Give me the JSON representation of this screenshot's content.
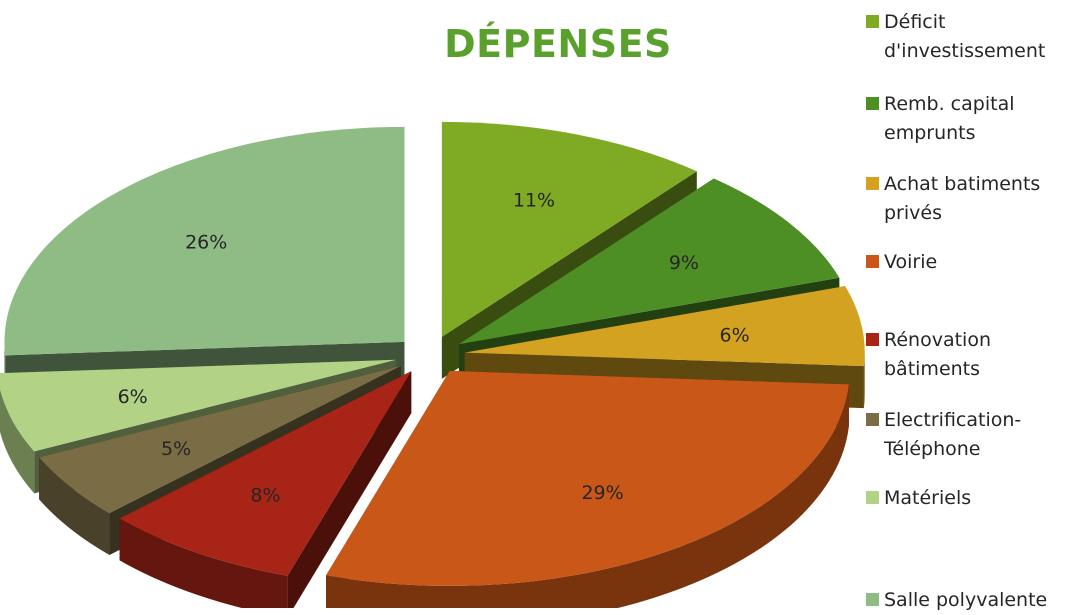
{
  "chart_data": {
    "type": "pie",
    "title": "DÉPENSES",
    "categories": [
      "Déficit\nd'investissement",
      "Remb. capital\nemprunts",
      "Achat batiments\nprivés",
      "Voirie",
      "Rénovation\nbâtiments",
      "Electrification-\nTéléphone",
      "Matériels",
      "Salle polyvalente"
    ],
    "values": [
      11,
      9,
      6,
      29,
      8,
      5,
      6,
      26
    ],
    "data_labels": [
      "11%",
      "9%",
      "6%",
      "29%",
      "8%",
      "5%",
      "6%",
      "26%"
    ],
    "colors": [
      "#7fab24",
      "#4d8f25",
      "#d3a221",
      "#c95718",
      "#a82417",
      "#7a6c45",
      "#b2d386",
      "#8fbb85"
    ],
    "style": "3d-exploded",
    "legend_position": "right"
  }
}
